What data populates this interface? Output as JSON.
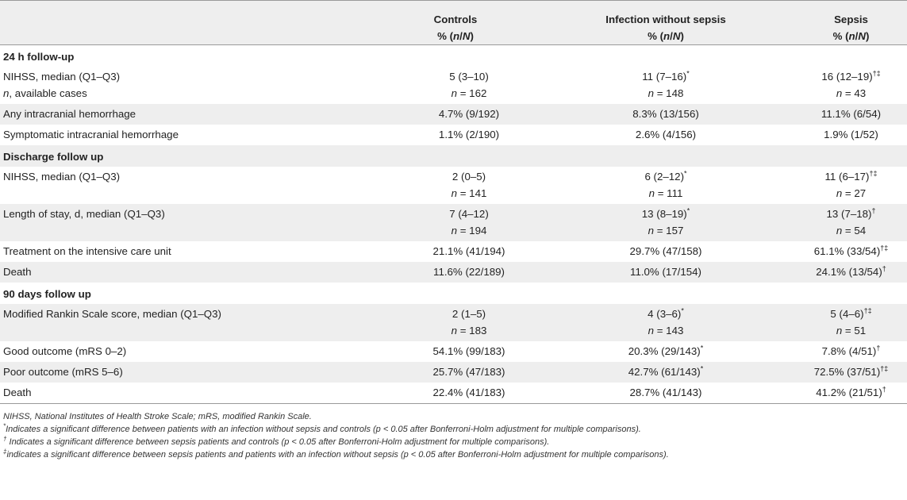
{
  "header": {
    "col0": "",
    "controls": {
      "name": "Controls",
      "unit": "% (n/N)"
    },
    "infection": {
      "name": "Infection without sepsis",
      "unit": "% (n/N)"
    },
    "sepsis": {
      "name": "Sepsis",
      "unit": "% (n/N)"
    }
  },
  "sections": {
    "s24h": "24 h follow-up",
    "discharge": "Discharge follow up",
    "d90": "90 days follow up"
  },
  "rows": {
    "nihss24": {
      "label": "NIHSS, median (Q1–Q3)",
      "controls": "5 (3–10)",
      "infection": "11 (7–16)",
      "infection_sup": "*",
      "sepsis": "16 (12–19)",
      "sepsis_sup": "†‡"
    },
    "avail24": {
      "label_prefix": "n",
      "label": ", available cases",
      "controls": "n = 162",
      "infection": "n = 148",
      "sepsis": "n = 43"
    },
    "ich": {
      "label": "Any intracranial hemorrhage",
      "controls": "4.7% (9/192)",
      "infection": "8.3% (13/156)",
      "sepsis": "11.1% (6/54)"
    },
    "sich": {
      "label": "Symptomatic intracranial hemorrhage",
      "controls": "1.1% (2/190)",
      "infection": "2.6% (4/156)",
      "sepsis": "1.9% (1/52)"
    },
    "nihssDis": {
      "label": "NIHSS, median (Q1–Q3)",
      "controls": "2 (0–5)",
      "infection": "6 (2–12)",
      "infection_sup": "*",
      "sepsis": "11 (6–17)",
      "sepsis_sup": "†‡",
      "controls_n": "n = 141",
      "infection_n": "n = 111",
      "sepsis_n": "n = 27"
    },
    "los": {
      "label": "Length of stay, d, median (Q1–Q3)",
      "controls": "7 (4–12)",
      "infection": "13 (8–19)",
      "infection_sup": "*",
      "sepsis": "13 (7–18)",
      "sepsis_sup": "†",
      "controls_n": "n = 194",
      "infection_n": "n = 157",
      "sepsis_n": "n = 54"
    },
    "icu": {
      "label": "Treatment on the intensive care unit",
      "controls": "21.1% (41/194)",
      "infection": "29.7% (47/158)",
      "sepsis": "61.1% (33/54)",
      "sepsis_sup": "†‡"
    },
    "deathDis": {
      "label": "Death",
      "controls": "11.6% (22/189)",
      "infection": "11.0% (17/154)",
      "sepsis": "24.1% (13/54)",
      "sepsis_sup": "†"
    },
    "mrs": {
      "label": "Modified Rankin Scale score, median (Q1–Q3)",
      "controls": "2 (1–5)",
      "infection": "4 (3–6)",
      "infection_sup": "*",
      "sepsis": "5 (4–6)",
      "sepsis_sup": "†‡",
      "controls_n": "n = 183",
      "infection_n": "n = 143",
      "sepsis_n": "n = 51"
    },
    "good": {
      "label": "Good outcome (mRS 0–2)",
      "controls": "54.1% (99/183)",
      "infection": "20.3% (29/143)",
      "infection_sup": "*",
      "sepsis": "7.8% (4/51)",
      "sepsis_sup": "†"
    },
    "poor": {
      "label": "Poor outcome (mRS 5–6)",
      "controls": "25.7% (47/183)",
      "infection": "42.7% (61/143)",
      "infection_sup": "*",
      "sepsis": "72.5% (37/51)",
      "sepsis_sup": "†‡"
    },
    "death90": {
      "label": "Death",
      "controls": "22.4% (41/183)",
      "infection": "28.7% (41/143)",
      "sepsis": "41.2% (21/51)",
      "sepsis_sup": "†"
    }
  },
  "footnotes": {
    "abbrev": "NIHSS, National Institutes of Health Stroke Scale; mRS, modified Rankin Scale.",
    "star_sym": "*",
    "star": "Indicates a significant difference between patients with an infection without sepsis and controls (p < 0.05 after Bonferroni-Holm adjustment for multiple comparisons).",
    "dagger_sym": "†",
    "dagger": " Indicates a significant difference between sepsis patients and controls (p < 0.05 after Bonferroni-Holm adjustment for multiple comparisons).",
    "ddagger_sym": "‡",
    "ddagger": "indicates a significant difference between sepsis patients and patients with an infection without sepsis (p < 0.05 after Bonferroni-Holm adjustment for multiple comparisons)."
  }
}
